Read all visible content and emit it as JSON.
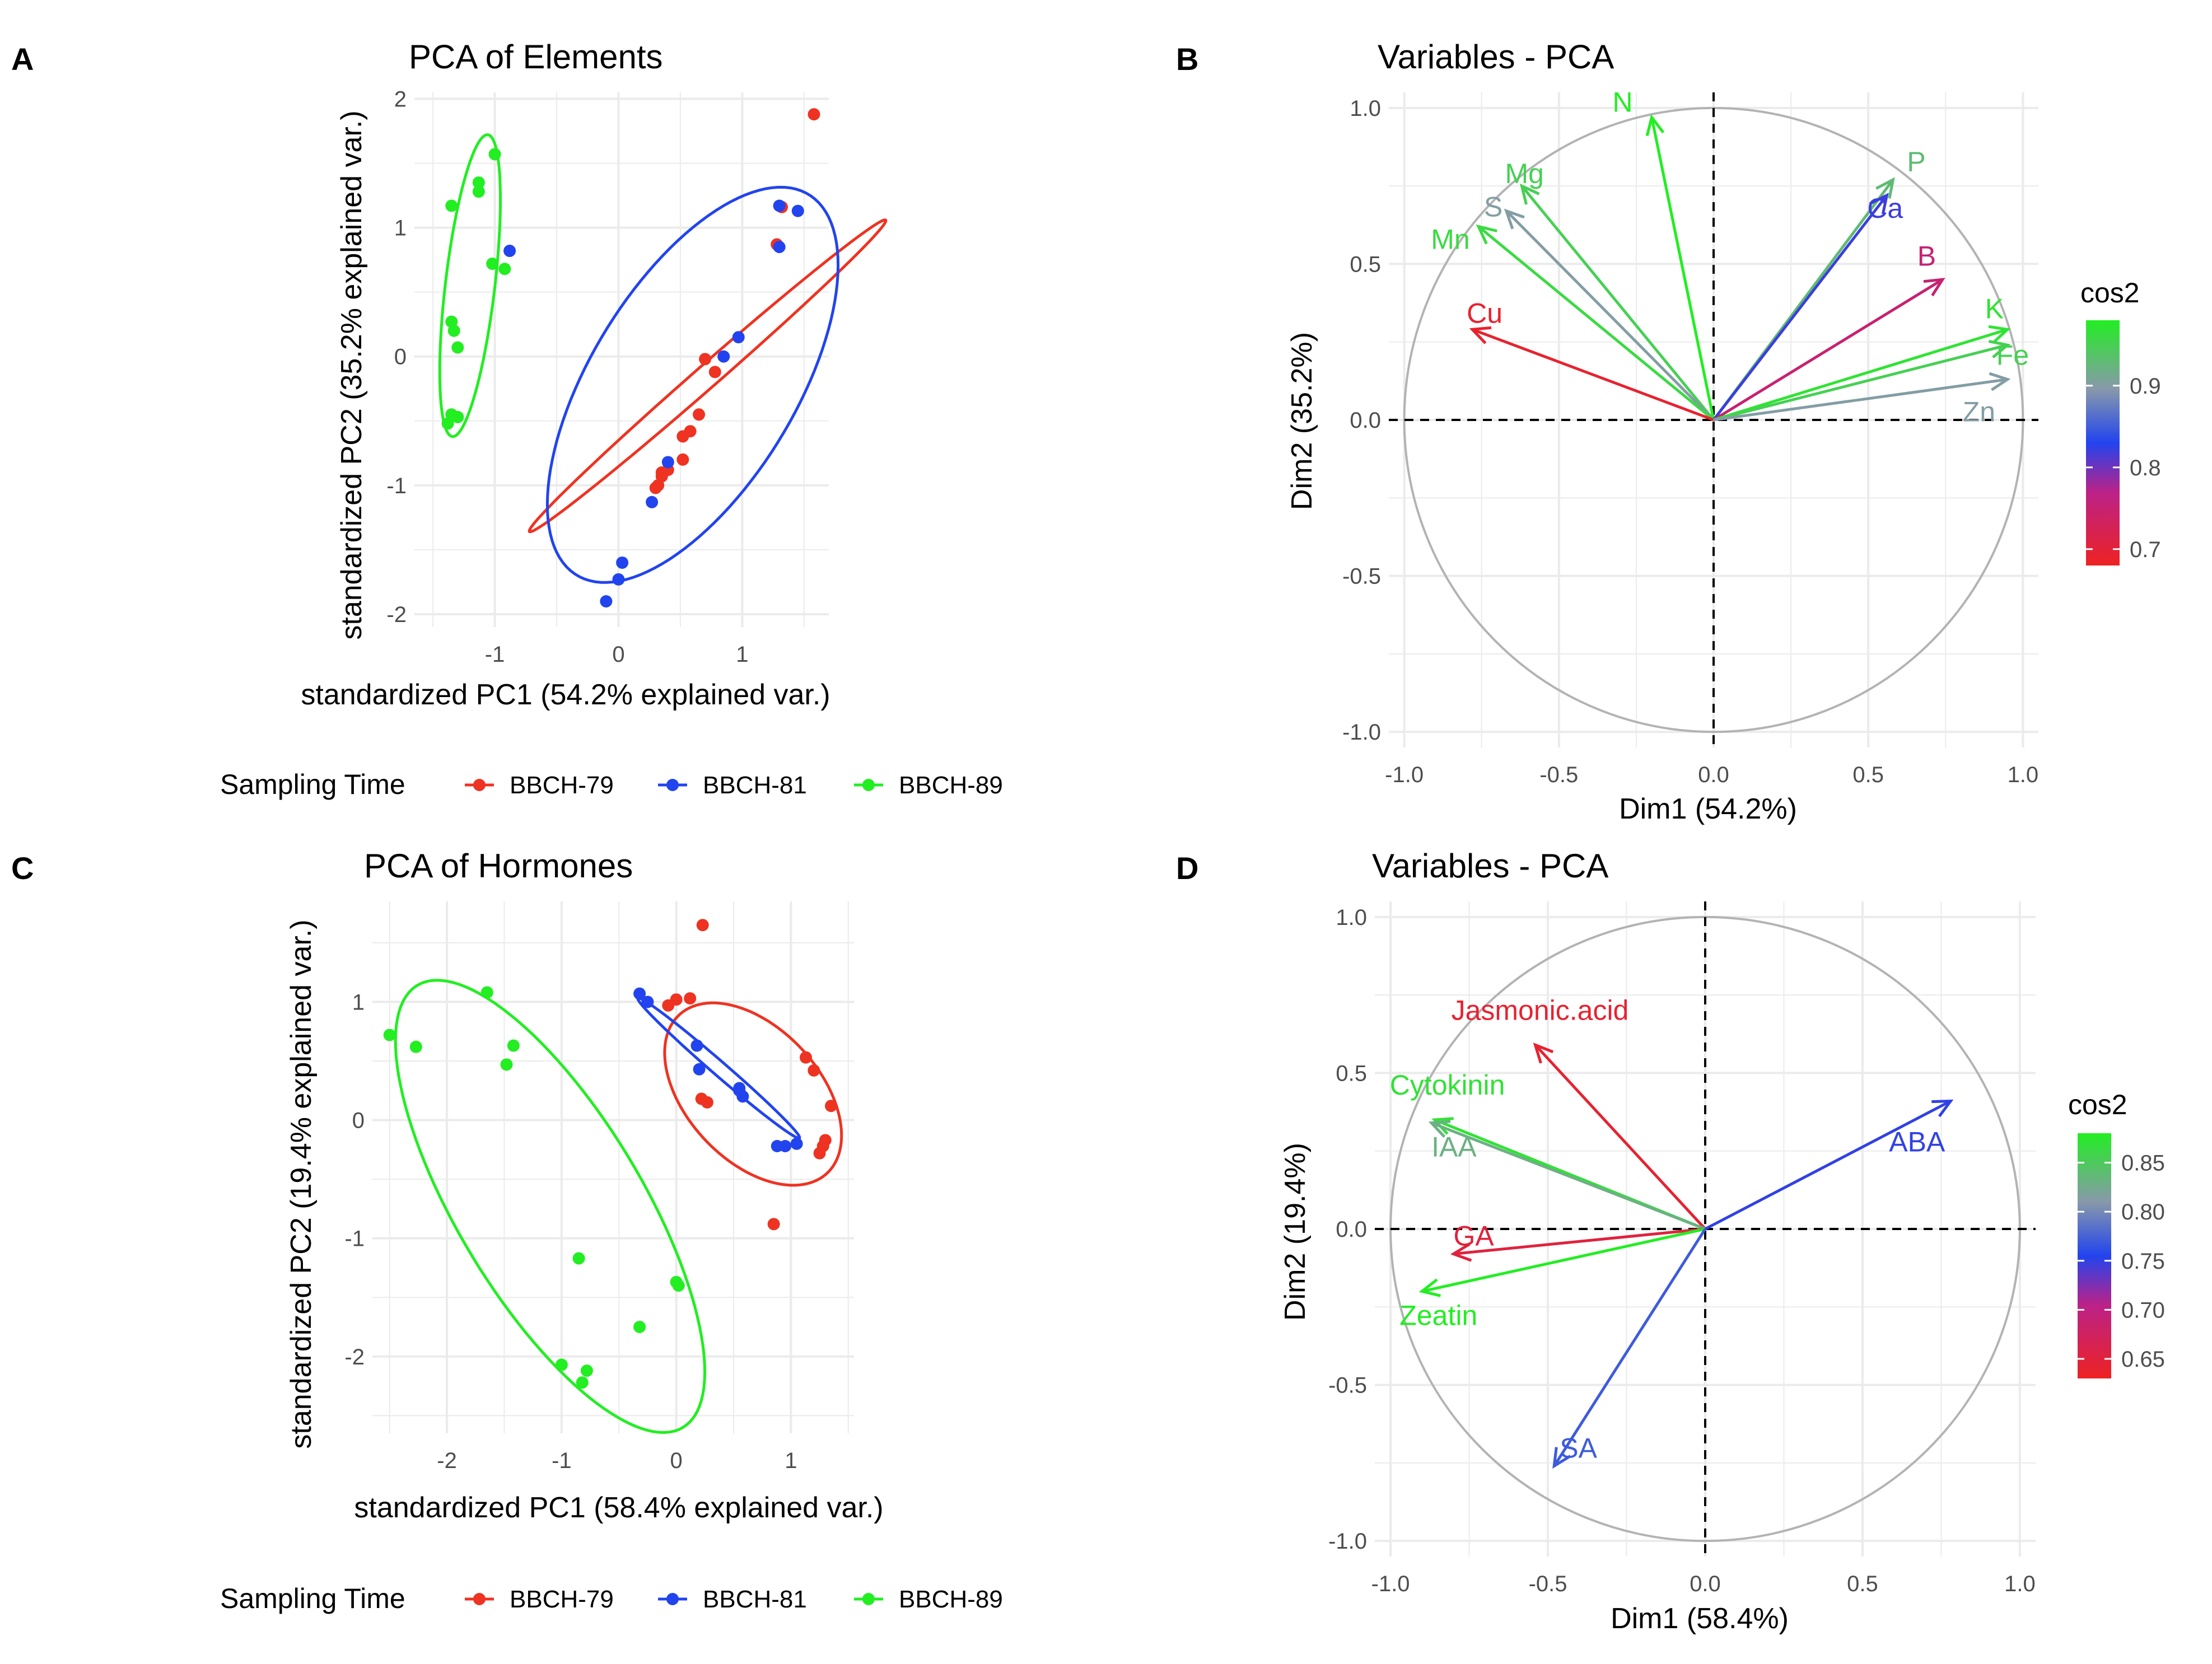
{
  "panels": [
    {
      "letter": "A",
      "title": "PCA of Elements",
      "xlabel": "standardized PC1 (54.2% explained var.)",
      "ylabel": "standardized PC2 (35.2% explained var.)",
      "legend_title": "Sampling Time"
    },
    {
      "letter": "B",
      "title": "Variables - PCA",
      "xlabel": "Dim1 (54.2%)",
      "ylabel": "Dim2 (35.2%)",
      "legend_title": "cos2"
    },
    {
      "letter": "C",
      "title": "PCA of Hormones",
      "xlabel": "standardized PC1 (58.4% explained var.)",
      "ylabel": "standardized PC2 (19.4% explained var.)",
      "legend_title": "Sampling Time"
    },
    {
      "letter": "D",
      "title": "Variables - PCA",
      "xlabel": "Dim1 (58.4%)",
      "ylabel": "Dim2 (19.4%)",
      "legend_title": "cos2"
    }
  ],
  "colors": {
    "BBCH-79": "#ee3322",
    "BBCH-81": "#2244ee",
    "BBCH-89": "#22ee22",
    "grid": "#ebebeb",
    "circle": "#b3b3b3",
    "axis_text": "#4d4d4d"
  },
  "chart_data": [
    {
      "panel": "A",
      "type": "scatter",
      "title": "PCA of Elements",
      "xlabel": "standardized PC1 (54.2% explained var.)",
      "ylabel": "standardized PC2 (35.2% explained var.)",
      "xlim": [
        -1.65,
        1.7
      ],
      "ylim": [
        -2.1,
        2.05
      ],
      "xticks": [
        -1,
        0,
        1
      ],
      "yticks": [
        -2,
        -1,
        0,
        1,
        2
      ],
      "legend": {
        "title": "Sampling Time",
        "position": "bottom",
        "entries": [
          "BBCH-79",
          "BBCH-81",
          "BBCH-89"
        ]
      },
      "series": [
        {
          "name": "BBCH-79",
          "points": [
            [
              1.58,
              1.88
            ],
            [
              1.32,
              1.16
            ],
            [
              1.28,
              0.87
            ],
            [
              0.7,
              -0.02
            ],
            [
              0.78,
              -0.12
            ],
            [
              0.65,
              -0.45
            ],
            [
              0.58,
              -0.58
            ],
            [
              0.52,
              -0.62
            ],
            [
              0.52,
              -0.8
            ],
            [
              0.4,
              -0.88
            ],
            [
              0.35,
              -0.9
            ],
            [
              0.32,
              -1.0
            ],
            [
              0.3,
              -1.02
            ],
            [
              0.35,
              -0.93
            ]
          ],
          "ellipse": {
            "cx": 0.72,
            "cy": -0.15,
            "rx": 1.88,
            "ry": 0.09,
            "angle_deg": 40
          }
        },
        {
          "name": "BBCH-81",
          "points": [
            [
              1.3,
              1.17
            ],
            [
              1.45,
              1.13
            ],
            [
              1.3,
              0.85
            ],
            [
              0.97,
              0.15
            ],
            [
              0.85,
              0.0
            ],
            [
              0.4,
              -0.82
            ],
            [
              0.27,
              -1.13
            ],
            [
              0.03,
              -1.6
            ],
            [
              0.0,
              -1.73
            ],
            [
              -0.1,
              -1.9
            ],
            [
              -0.88,
              0.82
            ]
          ],
          "ellipse": {
            "cx": 0.6,
            "cy": -0.22,
            "rx": 1.75,
            "ry": 0.82,
            "angle_deg": 57
          }
        },
        {
          "name": "BBCH-89",
          "points": [
            [
              -1.0,
              1.57
            ],
            [
              -1.13,
              1.35
            ],
            [
              -1.13,
              1.28
            ],
            [
              -1.35,
              1.17
            ],
            [
              -1.02,
              0.72
            ],
            [
              -0.92,
              0.68
            ],
            [
              -1.35,
              0.27
            ],
            [
              -1.33,
              0.2
            ],
            [
              -1.3,
              0.07
            ],
            [
              -1.35,
              -0.45
            ],
            [
              -1.3,
              -0.47
            ],
            [
              -1.38,
              -0.52
            ]
          ],
          "ellipse": {
            "cx": -1.2,
            "cy": 0.55,
            "rx": 1.18,
            "ry": 0.2,
            "angle_deg": 83
          }
        }
      ]
    },
    {
      "panel": "B",
      "type": "scatter",
      "subtype": "variable-correlation-circle",
      "title": "Variables - PCA",
      "xlabel": "Dim1 (54.2%)",
      "ylabel": "Dim2 (35.2%)",
      "xlim": [
        -1.05,
        1.05
      ],
      "ylim": [
        -1.05,
        1.05
      ],
      "xticks": [
        "-1.0",
        "-0.5",
        "0.0",
        "0.5",
        "1.0"
      ],
      "yticks": [
        "-1.0",
        "-0.5",
        "0.0",
        "0.5",
        "1.0"
      ],
      "legend": {
        "title": "cos2",
        "position": "right",
        "range": [
          0.68,
          0.98
        ],
        "ticks": [
          "0.7",
          "0.8",
          "0.9"
        ]
      },
      "vectors": [
        {
          "name": "N",
          "x": -0.2,
          "y": 0.97,
          "cos2": 0.98
        },
        {
          "name": "Mg",
          "x": -0.62,
          "y": 0.75,
          "cos2": 0.95
        },
        {
          "name": "S",
          "x": -0.67,
          "y": 0.67,
          "cos2": 0.9
        },
        {
          "name": "Mn",
          "x": -0.76,
          "y": 0.62,
          "cos2": 0.96
        },
        {
          "name": "Cu",
          "x": -0.78,
          "y": 0.29,
          "cos2": 0.69
        },
        {
          "name": "P",
          "x": 0.58,
          "y": 0.77,
          "cos2": 0.93
        },
        {
          "name": "Ca",
          "x": 0.56,
          "y": 0.72,
          "cos2": 0.82
        },
        {
          "name": "B",
          "x": 0.74,
          "y": 0.45,
          "cos2": 0.75
        },
        {
          "name": "K",
          "x": 0.95,
          "y": 0.29,
          "cos2": 0.97
        },
        {
          "name": "Fe",
          "x": 0.95,
          "y": 0.24,
          "cos2": 0.95
        },
        {
          "name": "Zn",
          "x": 0.95,
          "y": 0.13,
          "cos2": 0.9
        }
      ]
    },
    {
      "panel": "C",
      "type": "scatter",
      "title": "PCA of Hormones",
      "xlabel": "standardized PC1 (58.4% explained var.)",
      "ylabel": "standardized PC2 (19.4% explained var.)",
      "xlim": [
        -2.65,
        1.55
      ],
      "ylim": [
        -2.65,
        1.85
      ],
      "xticks": [
        -2,
        -1,
        0,
        1
      ],
      "yticks": [
        -2,
        -1,
        0,
        1
      ],
      "legend": {
        "title": "Sampling Time",
        "position": "bottom",
        "entries": [
          "BBCH-79",
          "BBCH-81",
          "BBCH-89"
        ]
      },
      "series": [
        {
          "name": "BBCH-79",
          "points": [
            [
              0.23,
              1.65
            ],
            [
              -0.07,
              0.97
            ],
            [
              0.0,
              1.02
            ],
            [
              0.12,
              1.03
            ],
            [
              1.13,
              0.53
            ],
            [
              1.2,
              0.42
            ],
            [
              1.35,
              0.12
            ],
            [
              1.3,
              -0.17
            ],
            [
              1.28,
              -0.22
            ],
            [
              1.25,
              -0.28
            ],
            [
              0.22,
              0.18
            ],
            [
              0.27,
              0.15
            ],
            [
              0.85,
              -0.88
            ]
          ],
          "ellipse": {
            "cx": 0.67,
            "cy": 0.22,
            "rx": 0.93,
            "ry": 0.57,
            "angle_deg": -45
          }
        },
        {
          "name": "BBCH-81",
          "points": [
            [
              -0.32,
              1.07
            ],
            [
              -0.25,
              1.0
            ],
            [
              0.18,
              0.63
            ],
            [
              0.2,
              0.43
            ],
            [
              0.55,
              0.25
            ],
            [
              0.58,
              0.2
            ],
            [
              0.55,
              0.27
            ],
            [
              0.88,
              -0.22
            ],
            [
              1.05,
              -0.2
            ],
            [
              0.95,
              -0.22
            ]
          ],
          "ellipse": {
            "cx": 0.37,
            "cy": 0.44,
            "rx": 0.92,
            "ry": 0.06,
            "angle_deg": -40
          }
        },
        {
          "name": "BBCH-89",
          "points": [
            [
              -2.5,
              0.72
            ],
            [
              -2.27,
              0.62
            ],
            [
              -1.65,
              1.08
            ],
            [
              -1.42,
              0.63
            ],
            [
              -1.48,
              0.47
            ],
            [
              -0.85,
              -1.17
            ],
            [
              -0.32,
              -1.75
            ],
            [
              0.0,
              -1.37
            ],
            [
              0.02,
              -1.4
            ],
            [
              -1.0,
              -2.07
            ],
            [
              -0.78,
              -2.12
            ],
            [
              -0.82,
              -2.22
            ]
          ],
          "ellipse": {
            "cx": -1.1,
            "cy": -0.73,
            "rx": 2.2,
            "ry": 0.8,
            "angle_deg": -58
          }
        }
      ]
    },
    {
      "panel": "D",
      "type": "scatter",
      "subtype": "variable-correlation-circle",
      "title": "Variables - PCA",
      "xlabel": "Dim1 (58.4%)",
      "ylabel": "Dim2 (19.4%)",
      "xlim": [
        -1.05,
        1.05
      ],
      "ylim": [
        -1.05,
        1.05
      ],
      "xticks": [
        "-1.0",
        "-0.5",
        "0.0",
        "0.5",
        "1.0"
      ],
      "yticks": [
        "-1.0",
        "-0.5",
        "0.0",
        "0.5",
        "1.0"
      ],
      "legend": {
        "title": "cos2",
        "position": "right",
        "range": [
          0.63,
          0.88
        ],
        "ticks": [
          "0.65",
          "0.70",
          "0.75",
          "0.80",
          "0.85"
        ]
      },
      "vectors": [
        {
          "name": "Jasmonic.acid",
          "x": -0.54,
          "y": 0.59,
          "cos2": 0.64
        },
        {
          "name": "Cytokinin",
          "x": -0.86,
          "y": 0.35,
          "cos2": 0.87
        },
        {
          "name": "IAA",
          "x": -0.87,
          "y": 0.34,
          "cos2": 0.83
        },
        {
          "name": "GA",
          "x": -0.8,
          "y": -0.08,
          "cos2": 0.65
        },
        {
          "name": "Zeatin",
          "x": -0.9,
          "y": -0.2,
          "cos2": 0.88
        },
        {
          "name": "ABA",
          "x": 0.78,
          "y": 0.41,
          "cos2": 0.75
        },
        {
          "name": "SA",
          "x": -0.48,
          "y": -0.76,
          "cos2": 0.77
        }
      ]
    }
  ]
}
